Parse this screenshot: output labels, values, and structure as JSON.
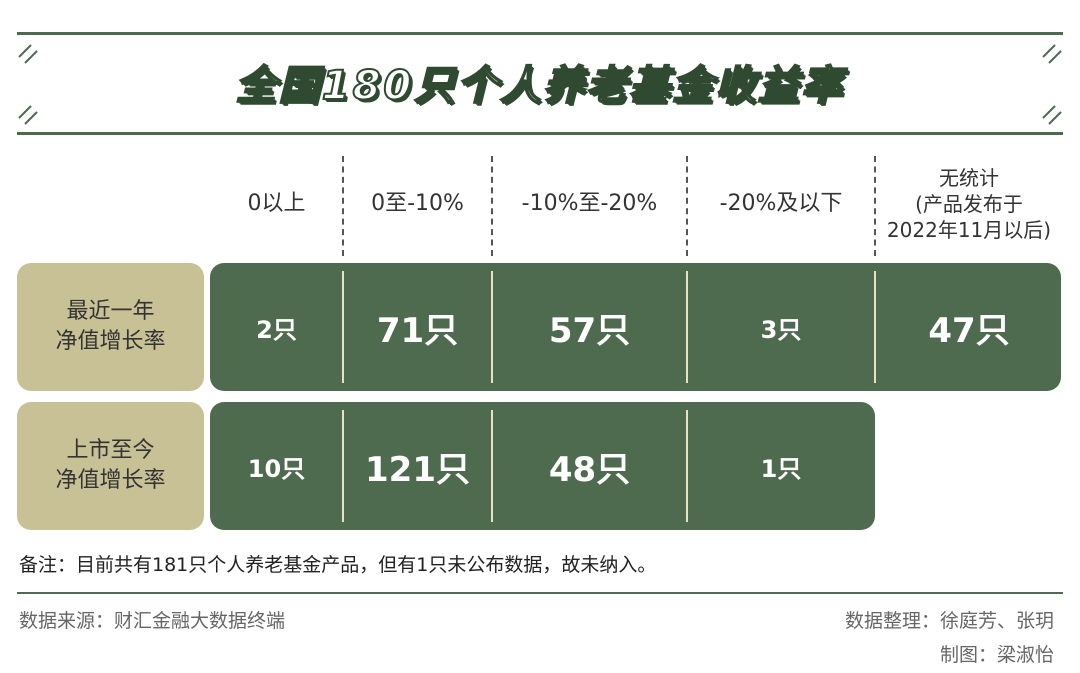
{
  "chart_data": {
    "type": "table",
    "title": "全国180只个人养老基金收益率",
    "columns": [
      "0以上",
      "0至-10%",
      "-10%至-20%",
      "-20%及以下"
    ],
    "column_no_stats": [
      "无统计",
      "(产品发布于",
      "2022年11月以后)"
    ],
    "rows": [
      {
        "label_line1": "最近一年",
        "label_line2": "净值增长率",
        "values": [
          "2只",
          "71只",
          "57只",
          "3只",
          "47只"
        ]
      },
      {
        "label_line1": "上市至今",
        "label_line2": "净值增长率",
        "values": [
          "10只",
          "121只",
          "48只",
          "1只"
        ]
      }
    ]
  },
  "note": "备注：目前共有181只个人养老基金产品，但有1只未公布数据，故未纳入。",
  "footer": {
    "source": "数据来源：财汇金融大数据终端",
    "compiled_by": "数据整理：徐庭芳、张玥",
    "chart_by": "制图：梁淑怡"
  }
}
